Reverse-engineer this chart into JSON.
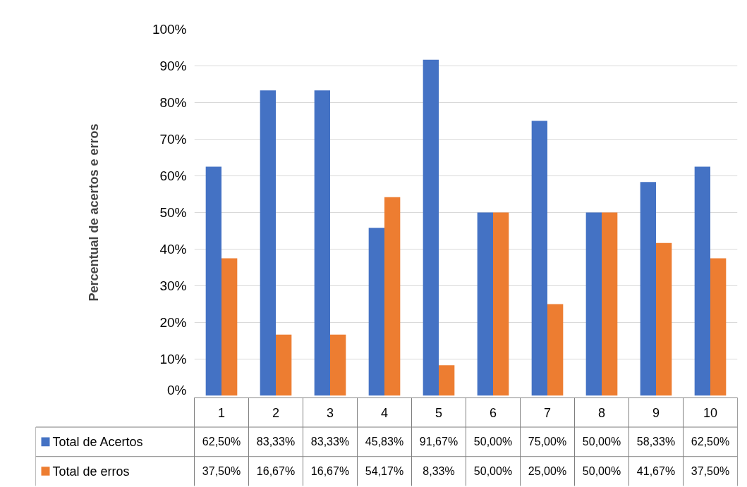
{
  "chart_data": {
    "type": "bar",
    "ylabel": "Percentual de acertos e erros",
    "categories": [
      "1",
      "2",
      "3",
      "4",
      "5",
      "6",
      "7",
      "8",
      "9",
      "10"
    ],
    "series": [
      {
        "name": "Total de Acertos",
        "color": "#4472c4",
        "values": [
          62.5,
          83.33,
          83.33,
          45.83,
          91.67,
          50.0,
          75.0,
          50.0,
          58.33,
          62.5
        ],
        "value_labels": [
          "62,50%",
          "83,33%",
          "83,33%",
          "45,83%",
          "91,67%",
          "50,00%",
          "75,00%",
          "50,00%",
          "58,33%",
          "62,50%"
        ]
      },
      {
        "name": "Total de erros",
        "color": "#ed7d31",
        "values": [
          37.5,
          16.67,
          16.67,
          54.17,
          8.33,
          50.0,
          25.0,
          50.0,
          41.67,
          37.5
        ],
        "value_labels": [
          "37,50%",
          "16,67%",
          "16,67%",
          "54,17%",
          "8,33%",
          "50,00%",
          "25,00%",
          "50,00%",
          "41,67%",
          "37,50%"
        ]
      }
    ],
    "ylim": [
      0,
      100
    ],
    "yticks": [
      {
        "value": 0,
        "label": "0%"
      },
      {
        "value": 10,
        "label": "10%"
      },
      {
        "value": 20,
        "label": "20%"
      },
      {
        "value": 30,
        "label": "30%"
      },
      {
        "value": 40,
        "label": "40%"
      },
      {
        "value": 50,
        "label": "50%"
      },
      {
        "value": 60,
        "label": "60%"
      },
      {
        "value": 70,
        "label": "70%"
      },
      {
        "value": 80,
        "label": "80%"
      },
      {
        "value": 90,
        "label": "90%"
      },
      {
        "value": 100,
        "label": "100%"
      }
    ],
    "grid": "y",
    "legend": "bottom"
  }
}
